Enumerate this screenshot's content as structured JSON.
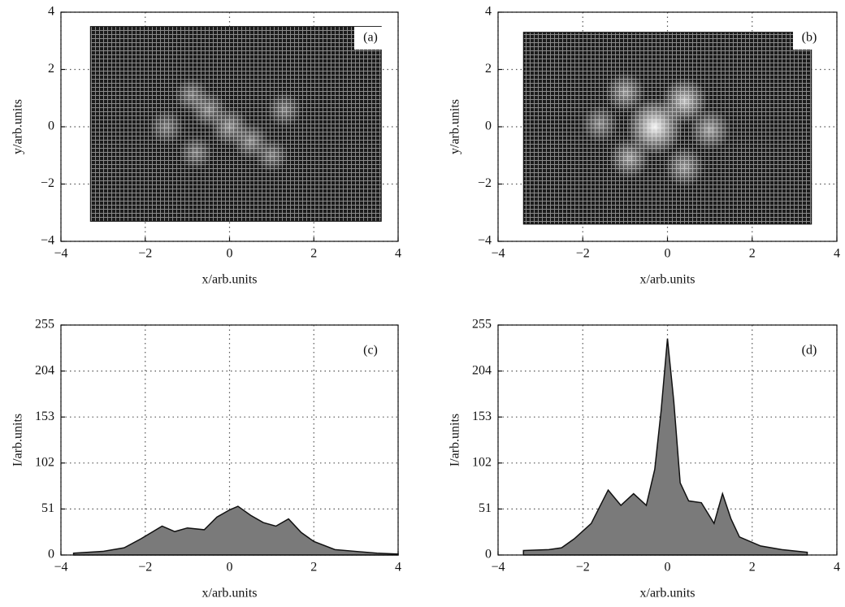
{
  "chart_data": [
    {
      "type": "heatmap",
      "label": "(a)",
      "xlabel": "x/arb.units",
      "ylabel": "y/arb.units",
      "xlim": [
        -4,
        4
      ],
      "ylim": [
        -4,
        4
      ],
      "xticks": [
        {
          "value": -4,
          "label": "−4"
        },
        {
          "value": -2,
          "label": "−2"
        },
        0,
        2,
        4
      ],
      "yticks": [
        {
          "value": -4,
          "label": "−4"
        },
        {
          "value": -2,
          "label": "−2"
        },
        0,
        2,
        4
      ],
      "grid": true,
      "image_x": [
        -3.3,
        3.6
      ],
      "image_y": [
        -3.3,
        3.5
      ],
      "spots": [
        {
          "x": 0,
          "y": 0,
          "intensity": 52
        },
        {
          "x": -0.5,
          "y": 0.6,
          "intensity": 40
        },
        {
          "x": 0.5,
          "y": -0.5,
          "intensity": 40
        },
        {
          "x": -0.9,
          "y": 1.1,
          "intensity": 30
        },
        {
          "x": 1.3,
          "y": 0.6,
          "intensity": 30
        },
        {
          "x": -1.5,
          "y": 0,
          "intensity": 28
        },
        {
          "x": -0.8,
          "y": -0.9,
          "intensity": 25
        },
        {
          "x": 1.0,
          "y": -1.0,
          "intensity": 25
        }
      ]
    },
    {
      "type": "heatmap",
      "label": "(b)",
      "xlabel": "x/arb.units",
      "ylabel": "y/arb.units",
      "xlim": [
        -4,
        4
      ],
      "ylim": [
        -4,
        4
      ],
      "xticks": [
        {
          "value": -4,
          "label": "−4"
        },
        {
          "value": -2,
          "label": "−2"
        },
        0,
        2,
        4
      ],
      "yticks": [
        {
          "value": -4,
          "label": "−4"
        },
        {
          "value": -2,
          "label": "−2"
        },
        0,
        2,
        4
      ],
      "grid": true,
      "image_x": [
        -3.4,
        3.4
      ],
      "image_y": [
        -3.4,
        3.3
      ],
      "spots": [
        {
          "x": -0.3,
          "y": 0,
          "intensity": 240
        },
        {
          "x": 0.4,
          "y": 0.9,
          "intensity": 110
        },
        {
          "x": 1.0,
          "y": -0.1,
          "intensity": 70
        },
        {
          "x": -0.9,
          "y": -1.1,
          "intensity": 65
        },
        {
          "x": 0.4,
          "y": -1.4,
          "intensity": 60
        },
        {
          "x": -1.0,
          "y": 1.2,
          "intensity": 60
        },
        {
          "x": -1.6,
          "y": 0.1,
          "intensity": 40
        }
      ]
    },
    {
      "type": "area",
      "label": "(c)",
      "xlabel": "x/arb.units",
      "ylabel": "I/arb.units",
      "xlim": [
        -4,
        4
      ],
      "ylim": [
        0,
        255
      ],
      "xticks": [
        {
          "value": -4,
          "label": "−4"
        },
        {
          "value": -2,
          "label": "−2"
        },
        0,
        2,
        4
      ],
      "yticks": [
        0,
        51,
        102,
        153,
        204,
        255
      ],
      "grid": true,
      "color": "#7a7a7a",
      "x": [
        -3.7,
        -3.0,
        -2.5,
        -2.1,
        -1.6,
        -1.3,
        -1.0,
        -0.6,
        -0.3,
        0.0,
        0.2,
        0.5,
        0.8,
        1.1,
        1.4,
        1.7,
        2.0,
        2.5,
        3.0,
        3.5,
        4.0
      ],
      "values": [
        2,
        4,
        8,
        18,
        32,
        26,
        30,
        28,
        42,
        50,
        54,
        44,
        36,
        32,
        40,
        25,
        15,
        6,
        4,
        2,
        1
      ]
    },
    {
      "type": "area",
      "label": "(d)",
      "xlabel": "x/arb.units",
      "ylabel": "I/arb.units",
      "xlim": [
        -4,
        4
      ],
      "ylim": [
        0,
        255
      ],
      "xticks": [
        {
          "value": -4,
          "label": "−4"
        },
        {
          "value": -2,
          "label": "−2"
        },
        0,
        2,
        4
      ],
      "yticks": [
        0,
        51,
        102,
        153,
        204,
        255
      ],
      "grid": true,
      "color": "#7a7a7a",
      "x": [
        -3.4,
        -2.8,
        -2.5,
        -2.2,
        -1.8,
        -1.4,
        -1.1,
        -0.8,
        -0.5,
        -0.3,
        -0.15,
        0.0,
        0.15,
        0.3,
        0.5,
        0.8,
        1.1,
        1.3,
        1.5,
        1.7,
        2.2,
        2.7,
        3.3
      ],
      "values": [
        5,
        6,
        8,
        18,
        35,
        72,
        55,
        68,
        55,
        95,
        160,
        240,
        170,
        80,
        60,
        58,
        35,
        68,
        40,
        20,
        10,
        6,
        3
      ]
    }
  ]
}
